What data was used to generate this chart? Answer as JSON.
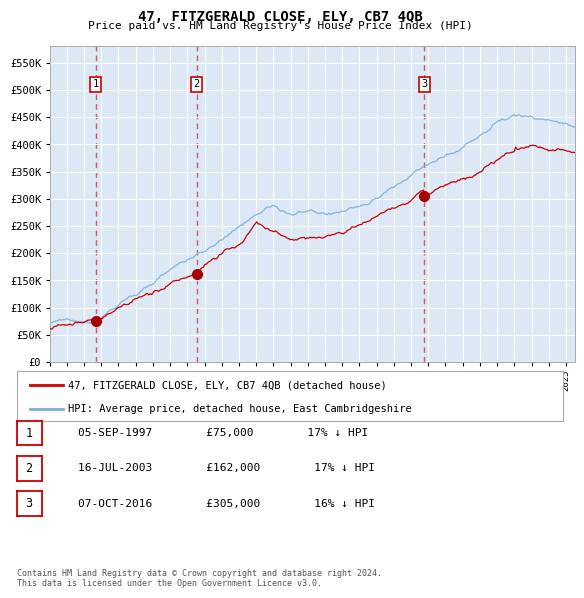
{
  "title": "47, FITZGERALD CLOSE, ELY, CB7 4QB",
  "subtitle": "Price paid vs. HM Land Registry's House Price Index (HPI)",
  "ylabel_ticks": [
    "£0",
    "£50K",
    "£100K",
    "£150K",
    "£200K",
    "£250K",
    "£300K",
    "£350K",
    "£400K",
    "£450K",
    "£500K",
    "£550K"
  ],
  "ytick_values": [
    0,
    50000,
    100000,
    150000,
    200000,
    250000,
    300000,
    350000,
    400000,
    450000,
    500000,
    550000
  ],
  "ylim": [
    0,
    580000
  ],
  "xlim_start": 1995.0,
  "xlim_end": 2025.5,
  "transactions": [
    {
      "date": 1997.67,
      "price": 75000,
      "label": "1"
    },
    {
      "date": 2003.54,
      "price": 162000,
      "label": "2"
    },
    {
      "date": 2016.77,
      "price": 305000,
      "label": "3"
    }
  ],
  "legend_entries": [
    "47, FITZGERALD CLOSE, ELY, CB7 4QB (detached house)",
    "HPI: Average price, detached house, East Cambridgeshire"
  ],
  "table_rows": [
    {
      "num": "1",
      "date": "05-SEP-1997",
      "price": "£75,000",
      "hpi": "17% ↓ HPI"
    },
    {
      "num": "2",
      "date": "16-JUL-2003",
      "price": "£162,000",
      "hpi": "17% ↓ HPI"
    },
    {
      "num": "3",
      "date": "07-OCT-2016",
      "price": "£305,000",
      "hpi": "16% ↓ HPI"
    }
  ],
  "footer": "Contains HM Land Registry data © Crown copyright and database right 2024.\nThis data is licensed under the Open Government Licence v3.0.",
  "hpi_color": "#7bafd4",
  "price_color": "#cc0000",
  "marker_color": "#aa0000",
  "dashed_line_color": "#cc4444",
  "background_color": "#dce8f5",
  "plot_bg": "#dce8f5",
  "grid_color": "#ffffff"
}
